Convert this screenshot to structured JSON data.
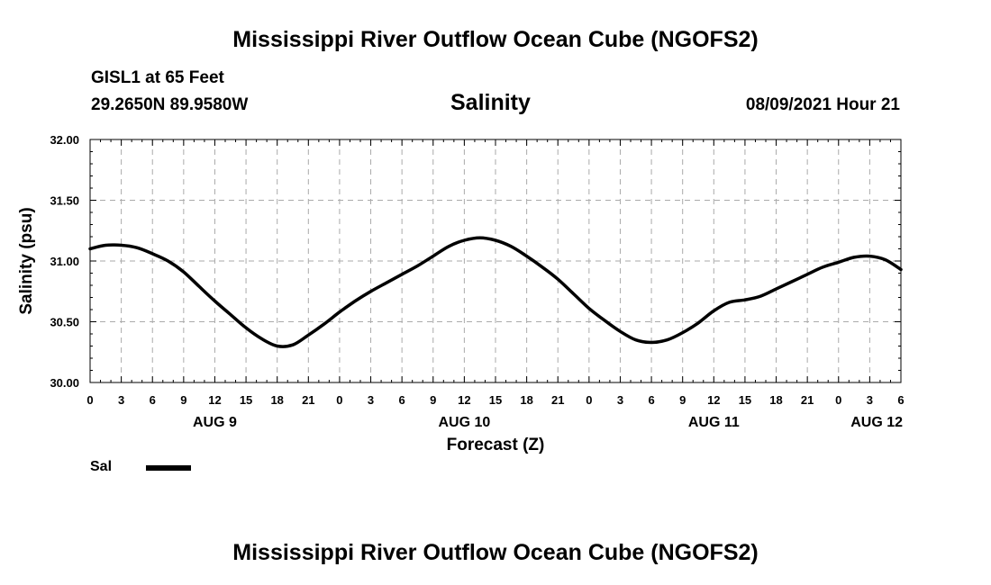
{
  "header": {
    "title": "Mississippi River Outflow Ocean Cube (NGOFS2)",
    "station": "GISL1 at 65 Feet",
    "coords": "29.2650N  89.9580W",
    "chart_title": "Salinity",
    "datetime": "08/09/2021 Hour 21"
  },
  "footer": {
    "title": "Mississippi River Outflow Ocean Cube (NGOFS2)"
  },
  "legend": {
    "label": "Sal",
    "color": "#000000"
  },
  "chart_data": {
    "type": "line",
    "title": "Salinity",
    "xlabel": "Forecast (Z)",
    "ylabel": "Salinity (psu)",
    "xlim": [
      0,
      78
    ],
    "ylim": [
      30.0,
      32.0
    ],
    "grid": true,
    "yticks": [
      "30.00",
      "30.50",
      "31.00",
      "31.50",
      "32.00"
    ],
    "xtick_labels": [
      "0",
      "3",
      "6",
      "9",
      "12",
      "15",
      "18",
      "21",
      "0",
      "3",
      "6",
      "9",
      "12",
      "15",
      "18",
      "21",
      "0",
      "3",
      "6",
      "9",
      "12",
      "15",
      "18",
      "21",
      "0",
      "3",
      "6"
    ],
    "day_labels": [
      {
        "label": "AUG 9",
        "hour": 12
      },
      {
        "label": "AUG 10",
        "hour": 36
      },
      {
        "label": "AUG 11",
        "hour": 60
      },
      {
        "label": "AUG 12",
        "hour": 78
      }
    ],
    "series": [
      {
        "name": "Sal",
        "color": "#000000",
        "x": [
          0,
          1.5,
          3,
          4.5,
          6,
          7.5,
          9,
          10.5,
          12,
          13.5,
          15,
          16.5,
          18,
          19.5,
          21,
          22.5,
          24,
          25.5,
          27,
          28.5,
          30,
          31.5,
          33,
          34.5,
          36,
          37.5,
          39,
          40.5,
          42,
          43.5,
          45,
          46.5,
          48,
          49.5,
          51,
          52.5,
          54,
          55.5,
          57,
          58.5,
          60,
          61.5,
          63,
          64.5,
          66,
          67.5,
          69,
          70.5,
          72,
          73.5,
          75,
          76.5,
          78
        ],
        "y": [
          31.1,
          31.13,
          31.13,
          31.11,
          31.06,
          31.0,
          30.91,
          30.79,
          30.67,
          30.56,
          30.45,
          30.36,
          30.3,
          30.31,
          30.39,
          30.48,
          30.58,
          30.67,
          30.75,
          30.82,
          30.89,
          30.96,
          31.04,
          31.12,
          31.17,
          31.19,
          31.17,
          31.12,
          31.04,
          30.95,
          30.85,
          30.73,
          30.61,
          30.51,
          30.42,
          30.35,
          30.33,
          30.35,
          30.41,
          30.49,
          30.59,
          30.66,
          30.68,
          30.71,
          30.77,
          30.83,
          30.89,
          30.95,
          30.99,
          31.03,
          31.04,
          31.01,
          30.93
        ]
      }
    ]
  }
}
